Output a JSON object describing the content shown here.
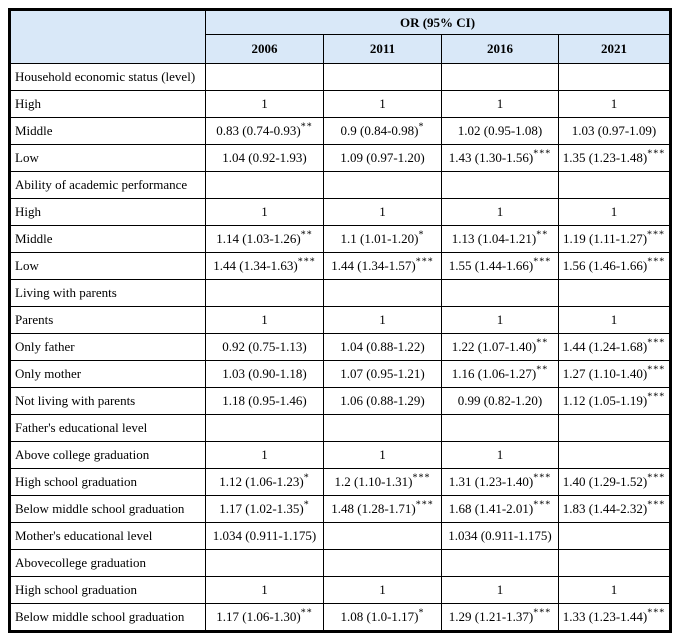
{
  "table": {
    "header": {
      "group_label": "OR (95% CI)",
      "columns": [
        "2006",
        "2011",
        "2016",
        "2021"
      ]
    },
    "rows": [
      {
        "label": "Household economic status (level)",
        "values": [
          {
            "v": ""
          },
          {
            "v": ""
          },
          {
            "v": ""
          },
          {
            "v": ""
          }
        ]
      },
      {
        "label": "High",
        "values": [
          {
            "v": "1"
          },
          {
            "v": "1"
          },
          {
            "v": "1"
          },
          {
            "v": "1"
          }
        ]
      },
      {
        "label": "Middle",
        "values": [
          {
            "v": "0.83 (0.74-0.93)",
            "s": "**"
          },
          {
            "v": "0.9 (0.84-0.98)",
            "s": "*"
          },
          {
            "v": "1.02 (0.95-1.08)"
          },
          {
            "v": "1.03 (0.97-1.09)"
          }
        ]
      },
      {
        "label": "Low",
        "values": [
          {
            "v": "1.04 (0.92-1.93)"
          },
          {
            "v": "1.09 (0.97-1.20)"
          },
          {
            "v": "1.43 (1.30-1.56)",
            "s": "***"
          },
          {
            "v": "1.35 (1.23-1.48)",
            "s": "***"
          }
        ]
      },
      {
        "label": "Ability of academic performance",
        "values": [
          {
            "v": ""
          },
          {
            "v": ""
          },
          {
            "v": ""
          },
          {
            "v": ""
          }
        ]
      },
      {
        "label": "High",
        "values": [
          {
            "v": "1"
          },
          {
            "v": "1"
          },
          {
            "v": "1"
          },
          {
            "v": "1"
          }
        ]
      },
      {
        "label": "Middle",
        "values": [
          {
            "v": "1.14 (1.03-1.26)",
            "s": "**"
          },
          {
            "v": "1.1 (1.01-1.20)",
            "s": "*"
          },
          {
            "v": "1.13 (1.04-1.21)",
            "s": "**"
          },
          {
            "v": "1.19 (1.11-1.27)",
            "s": "***"
          }
        ]
      },
      {
        "label": "Low",
        "values": [
          {
            "v": "1.44 (1.34-1.63)",
            "s": "***"
          },
          {
            "v": "1.44 (1.34-1.57)",
            "s": "***"
          },
          {
            "v": "1.55 (1.44-1.66)",
            "s": "***"
          },
          {
            "v": "1.56 (1.46-1.66)",
            "s": "***"
          }
        ]
      },
      {
        "label": "Living with parents",
        "values": [
          {
            "v": ""
          },
          {
            "v": ""
          },
          {
            "v": ""
          },
          {
            "v": ""
          }
        ]
      },
      {
        "label": "Parents",
        "values": [
          {
            "v": "1"
          },
          {
            "v": "1"
          },
          {
            "v": "1"
          },
          {
            "v": "1"
          }
        ]
      },
      {
        "label": "Only father",
        "values": [
          {
            "v": "0.92 (0.75-1.13)"
          },
          {
            "v": "1.04 (0.88-1.22)"
          },
          {
            "v": "1.22 (1.07-1.40)",
            "s": "**"
          },
          {
            "v": "1.44 (1.24-1.68)",
            "s": "***"
          }
        ]
      },
      {
        "label": "Only mother",
        "values": [
          {
            "v": "1.03 (0.90-1.18)"
          },
          {
            "v": "1.07 (0.95-1.21)"
          },
          {
            "v": "1.16 (1.06-1.27)",
            "s": "**"
          },
          {
            "v": "1.27 (1.10-1.40)",
            "s": "***"
          }
        ]
      },
      {
        "label": "Not living with parents",
        "values": [
          {
            "v": "1.18 (0.95-1.46)"
          },
          {
            "v": "1.06 (0.88-1.29)"
          },
          {
            "v": "0.99 (0.82-1.20)"
          },
          {
            "v": "1.12 (1.05-1.19)",
            "s": "***"
          }
        ]
      },
      {
        "label": "Father's educational level",
        "values": [
          {
            "v": ""
          },
          {
            "v": ""
          },
          {
            "v": ""
          },
          {
            "v": ""
          }
        ]
      },
      {
        "label": "Above college graduation",
        "values": [
          {
            "v": "1"
          },
          {
            "v": "1"
          },
          {
            "v": "1"
          },
          {
            "v": ""
          }
        ]
      },
      {
        "label": "High school graduation",
        "values": [
          {
            "v": "1.12 (1.06-1.23)",
            "s": "*"
          },
          {
            "v": "1.2 (1.10-1.31)",
            "s": "***"
          },
          {
            "v": "1.31 (1.23-1.40)",
            "s": "***"
          },
          {
            "v": "1.40 (1.29-1.52)",
            "s": "***"
          }
        ]
      },
      {
        "label": "Below middle school graduation",
        "values": [
          {
            "v": "1.17 (1.02-1.35)",
            "s": "*"
          },
          {
            "v": "1.48 (1.28-1.71)",
            "s": "***"
          },
          {
            "v": "1.68 (1.41-2.01)",
            "s": "***"
          },
          {
            "v": "1.83 (1.44-2.32)",
            "s": "***"
          }
        ]
      },
      {
        "label": "Mother's educational level",
        "values": [
          {
            "v": "1.034 (0.911-1.175)"
          },
          {
            "v": ""
          },
          {
            "v": "1.034 (0.911-1.175)"
          },
          {
            "v": ""
          }
        ]
      },
      {
        "label": "Abovecollege graduation",
        "values": [
          {
            "v": ""
          },
          {
            "v": ""
          },
          {
            "v": ""
          },
          {
            "v": ""
          }
        ]
      },
      {
        "label": "High school graduation",
        "values": [
          {
            "v": "1"
          },
          {
            "v": "1"
          },
          {
            "v": "1"
          },
          {
            "v": "1"
          }
        ]
      },
      {
        "label": "Below middle school graduation",
        "values": [
          {
            "v": "1.17 (1.06-1.30)",
            "s": "**"
          },
          {
            "v": "1.08 (1.0-1.17)",
            "s": "*"
          },
          {
            "v": "1.29 (1.21-1.37)",
            "s": "***"
          },
          {
            "v": "1.33 (1.23-1.44)",
            "s": "***"
          }
        ]
      }
    ]
  },
  "colors": {
    "header_bg": "#d9e8f8",
    "border": "#000000"
  }
}
